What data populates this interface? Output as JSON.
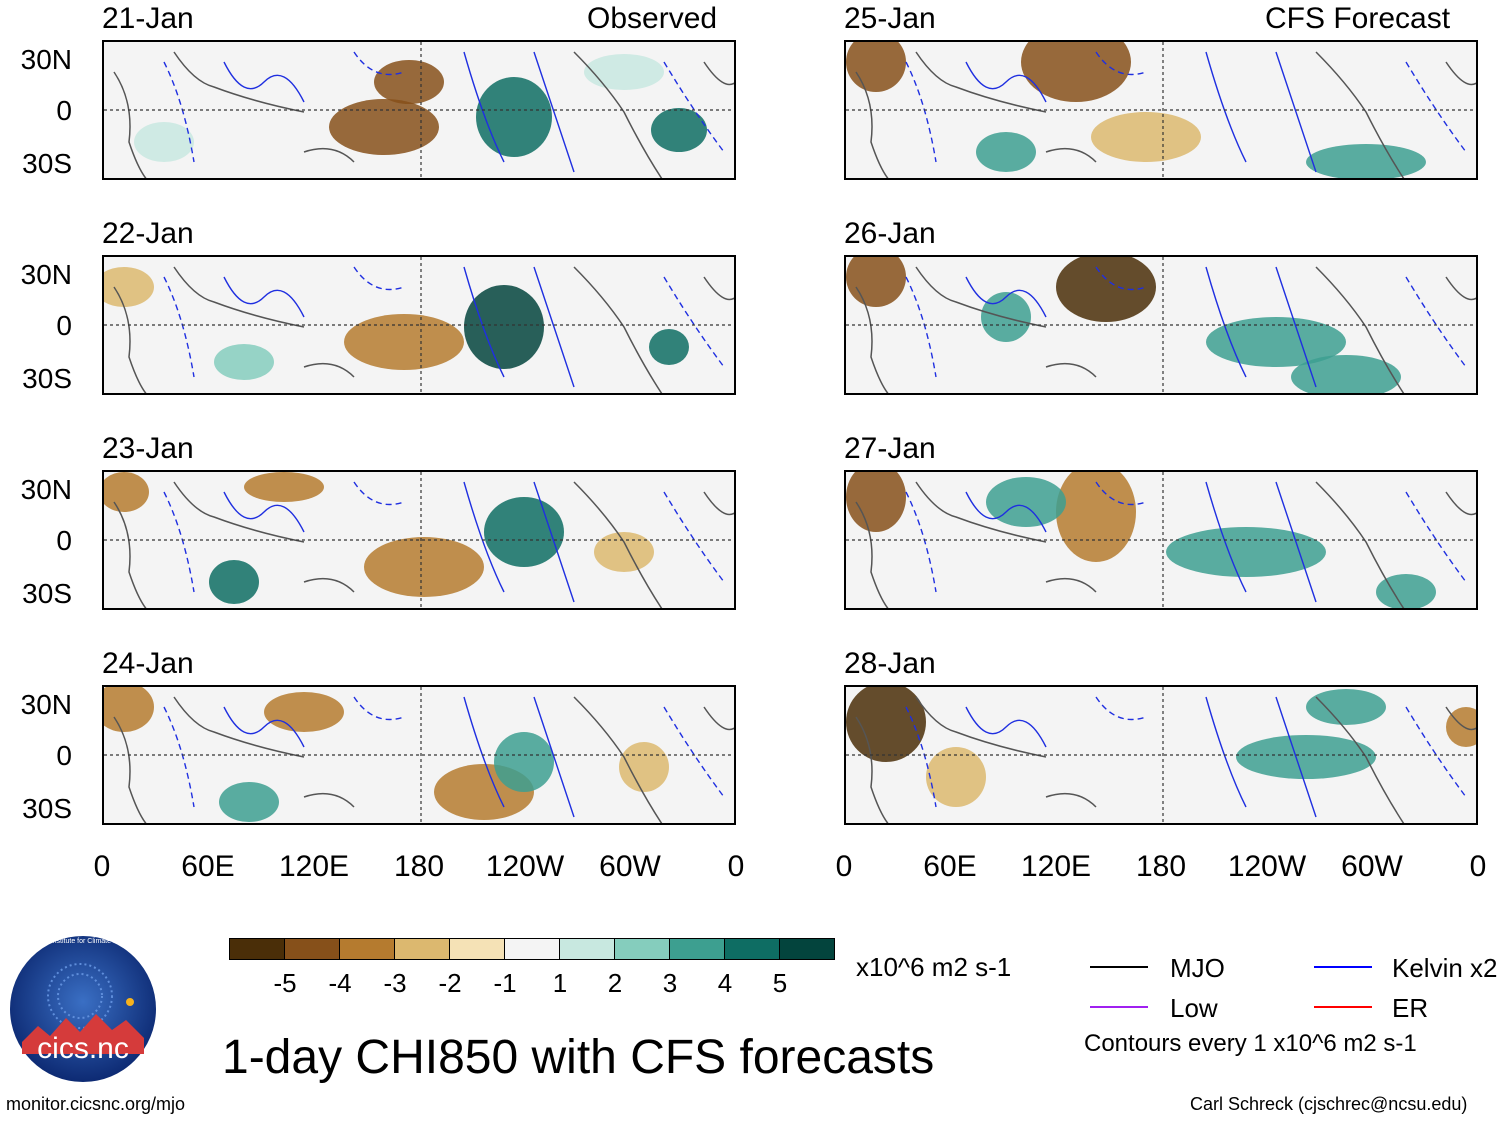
{
  "header": {
    "left_label": "Observed",
    "right_label": "CFS Forecast"
  },
  "panels_observed": [
    {
      "date": "21-Jan"
    },
    {
      "date": "22-Jan"
    },
    {
      "date": "23-Jan"
    },
    {
      "date": "24-Jan"
    }
  ],
  "panels_forecast": [
    {
      "date": "25-Jan"
    },
    {
      "date": "26-Jan"
    },
    {
      "date": "27-Jan"
    },
    {
      "date": "28-Jan"
    }
  ],
  "lat_labels": [
    "30N",
    "0",
    "30S"
  ],
  "lon_labels": [
    "0",
    "60E",
    "120E",
    "180",
    "120W",
    "60W",
    "0"
  ],
  "colorbar": {
    "colors": [
      "#4a2e08",
      "#86501a",
      "#b57b2f",
      "#dcb86f",
      "#f5e2b6",
      "#f4f4f4",
      "#c8e8e0",
      "#85cdbd",
      "#3d9f90",
      "#0e6d63",
      "#03443d"
    ],
    "ticks": [
      "-5",
      "-4",
      "-3",
      "-2",
      "-1",
      "1",
      "2",
      "3",
      "4",
      "5"
    ],
    "units": "x10^6 m2 s-1"
  },
  "legend": {
    "items": [
      {
        "label": "MJO",
        "color": "#000000"
      },
      {
        "label": "Kelvin x2",
        "color": "#0000ff"
      },
      {
        "label": "Low",
        "color": "#a020f0"
      },
      {
        "label": "ER",
        "color": "#ff0000"
      }
    ],
    "contour_note": "Contours every 1 x10^6 m2 s-1"
  },
  "logo_text": "cics.nc",
  "logo_ring_text": "Cooperative Institute for Climate and Satellites",
  "title": "1-day CHI850 with CFS forecasts",
  "footer_left": "monitor.cicsnc.org/mjo",
  "footer_right": "Carl Schreck (cjschrec@ncsu.edu)"
}
